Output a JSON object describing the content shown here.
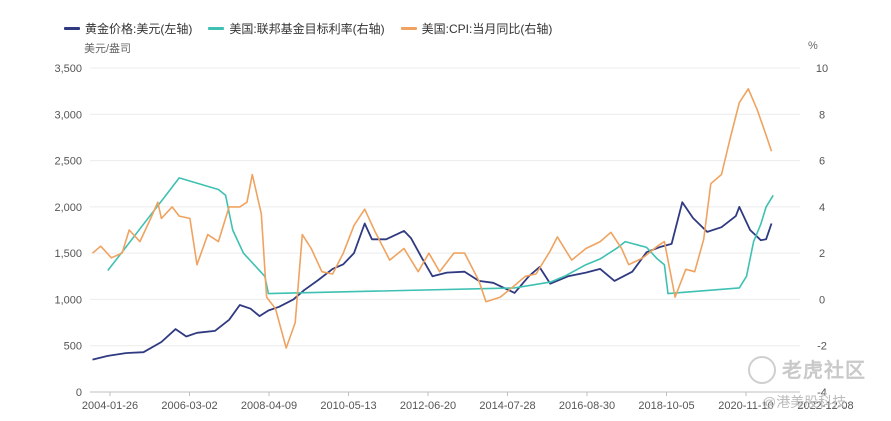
{
  "chart_data": {
    "type": "line",
    "legend_position": "top-left",
    "grid": true,
    "left_unit": "美元/盎司",
    "right_unit": "%",
    "x_ticks": [
      "2004-01-26",
      "2006-03-02",
      "2008-04-09",
      "2010-05-13",
      "2012-06-20",
      "2014-07-28",
      "2016-08-30",
      "2018-10-05",
      "2020-11-10",
      "2022-12-08"
    ],
    "xlim": [
      2004.0,
      2023.9
    ],
    "y_left_ticks": [
      "0",
      "500",
      "1,000",
      "1,500",
      "2,000",
      "2,500",
      "3,000",
      "3,500"
    ],
    "ylim_left": [
      0,
      3500
    ],
    "y_right_ticks": [
      "-4",
      "-2",
      "0",
      "2",
      "4",
      "6",
      "8",
      "10"
    ],
    "ylim_right": [
      -4,
      10
    ],
    "series": [
      {
        "name": "黄金价格:美元(左轴)",
        "axis": "left",
        "color": "#2f3a80",
        "points": [
          [
            2004.07,
            350
          ],
          [
            2004.5,
            390
          ],
          [
            2005.0,
            420
          ],
          [
            2005.5,
            430
          ],
          [
            2006.0,
            540
          ],
          [
            2006.4,
            680
          ],
          [
            2006.7,
            600
          ],
          [
            2007.0,
            640
          ],
          [
            2007.5,
            660
          ],
          [
            2007.9,
            780
          ],
          [
            2008.2,
            940
          ],
          [
            2008.5,
            900
          ],
          [
            2008.75,
            820
          ],
          [
            2009.0,
            880
          ],
          [
            2009.3,
            920
          ],
          [
            2009.7,
            1000
          ],
          [
            2010.0,
            1100
          ],
          [
            2010.4,
            1210
          ],
          [
            2010.8,
            1330
          ],
          [
            2011.1,
            1380
          ],
          [
            2011.4,
            1500
          ],
          [
            2011.7,
            1820
          ],
          [
            2011.9,
            1650
          ],
          [
            2012.3,
            1650
          ],
          [
            2012.8,
            1740
          ],
          [
            2013.0,
            1660
          ],
          [
            2013.3,
            1450
          ],
          [
            2013.6,
            1250
          ],
          [
            2014.0,
            1290
          ],
          [
            2014.5,
            1300
          ],
          [
            2014.9,
            1200
          ],
          [
            2015.3,
            1180
          ],
          [
            2015.9,
            1070
          ],
          [
            2016.3,
            1250
          ],
          [
            2016.6,
            1350
          ],
          [
            2016.9,
            1170
          ],
          [
            2017.4,
            1250
          ],
          [
            2017.9,
            1290
          ],
          [
            2018.3,
            1330
          ],
          [
            2018.7,
            1200
          ],
          [
            2019.2,
            1300
          ],
          [
            2019.6,
            1510
          ],
          [
            2020.0,
            1570
          ],
          [
            2020.3,
            1600
          ],
          [
            2020.6,
            2050
          ],
          [
            2020.9,
            1880
          ],
          [
            2021.3,
            1730
          ],
          [
            2021.7,
            1780
          ],
          [
            2022.1,
            1900
          ],
          [
            2022.2,
            2000
          ],
          [
            2022.5,
            1750
          ],
          [
            2022.8,
            1640
          ],
          [
            2022.95,
            1650
          ],
          [
            2023.1,
            1820
          ]
        ]
      },
      {
        "name": "美国:联邦基金目标利率(右轴)",
        "axis": "right",
        "color": "#3ec1b3",
        "points": [
          [
            2004.5,
            1.25
          ],
          [
            2005.0,
            2.25
          ],
          [
            2005.5,
            3.25
          ],
          [
            2006.0,
            4.25
          ],
          [
            2006.5,
            5.25
          ],
          [
            2007.6,
            4.75
          ],
          [
            2007.8,
            4.5
          ],
          [
            2008.0,
            3.0
          ],
          [
            2008.3,
            2.0
          ],
          [
            2008.9,
            1.0
          ],
          [
            2009.0,
            0.25
          ],
          [
            2015.9,
            0.5
          ],
          [
            2016.9,
            0.75
          ],
          [
            2017.3,
            1.0
          ],
          [
            2017.9,
            1.5
          ],
          [
            2018.3,
            1.75
          ],
          [
            2018.8,
            2.25
          ],
          [
            2019.0,
            2.5
          ],
          [
            2019.6,
            2.25
          ],
          [
            2019.9,
            1.75
          ],
          [
            2020.1,
            1.5
          ],
          [
            2020.2,
            0.25
          ],
          [
            2022.2,
            0.5
          ],
          [
            2022.4,
            1.0
          ],
          [
            2022.6,
            2.5
          ],
          [
            2022.8,
            3.25
          ],
          [
            2022.95,
            4.0
          ],
          [
            2023.15,
            4.5
          ]
        ]
      },
      {
        "name": "美国:CPI:当月同比(右轴)",
        "axis": "right",
        "color": "#f0a360",
        "points": [
          [
            2004.07,
            2.0
          ],
          [
            2004.3,
            2.3
          ],
          [
            2004.6,
            1.8
          ],
          [
            2004.9,
            2.0
          ],
          [
            2005.1,
            3.0
          ],
          [
            2005.4,
            2.5
          ],
          [
            2005.7,
            3.5
          ],
          [
            2005.9,
            4.2
          ],
          [
            2006.0,
            3.5
          ],
          [
            2006.3,
            4.0
          ],
          [
            2006.5,
            3.6
          ],
          [
            2006.8,
            3.5
          ],
          [
            2007.0,
            1.5
          ],
          [
            2007.3,
            2.8
          ],
          [
            2007.6,
            2.5
          ],
          [
            2007.9,
            4.0
          ],
          [
            2008.2,
            4.0
          ],
          [
            2008.4,
            4.2
          ],
          [
            2008.55,
            5.4
          ],
          [
            2008.8,
            3.7
          ],
          [
            2008.95,
            0.1
          ],
          [
            2009.2,
            -0.4
          ],
          [
            2009.5,
            -2.1
          ],
          [
            2009.75,
            -1.0
          ],
          [
            2009.95,
            2.8
          ],
          [
            2010.2,
            2.2
          ],
          [
            2010.5,
            1.2
          ],
          [
            2010.8,
            1.1
          ],
          [
            2011.1,
            2.0
          ],
          [
            2011.4,
            3.2
          ],
          [
            2011.7,
            3.9
          ],
          [
            2012.0,
            2.9
          ],
          [
            2012.4,
            1.7
          ],
          [
            2012.8,
            2.2
          ],
          [
            2013.2,
            1.2
          ],
          [
            2013.5,
            2.0
          ],
          [
            2013.8,
            1.2
          ],
          [
            2014.2,
            2.0
          ],
          [
            2014.5,
            2.0
          ],
          [
            2014.9,
            0.8
          ],
          [
            2015.1,
            -0.1
          ],
          [
            2015.5,
            0.1
          ],
          [
            2015.9,
            0.6
          ],
          [
            2016.2,
            1.0
          ],
          [
            2016.5,
            1.1
          ],
          [
            2016.9,
            2.1
          ],
          [
            2017.1,
            2.7
          ],
          [
            2017.5,
            1.7
          ],
          [
            2017.9,
            2.2
          ],
          [
            2018.3,
            2.5
          ],
          [
            2018.6,
            2.9
          ],
          [
            2018.9,
            2.2
          ],
          [
            2019.1,
            1.5
          ],
          [
            2019.5,
            1.8
          ],
          [
            2019.9,
            2.3
          ],
          [
            2020.1,
            2.5
          ],
          [
            2020.4,
            0.1
          ],
          [
            2020.7,
            1.3
          ],
          [
            2020.95,
            1.2
          ],
          [
            2021.2,
            2.6
          ],
          [
            2021.4,
            5.0
          ],
          [
            2021.7,
            5.4
          ],
          [
            2021.95,
            7.0
          ],
          [
            2022.2,
            8.5
          ],
          [
            2022.45,
            9.1
          ],
          [
            2022.7,
            8.2
          ],
          [
            2022.95,
            7.1
          ],
          [
            2023.1,
            6.4
          ]
        ]
      }
    ]
  },
  "watermark": {
    "main": "老虎社区",
    "sub": "@港美股科技"
  }
}
